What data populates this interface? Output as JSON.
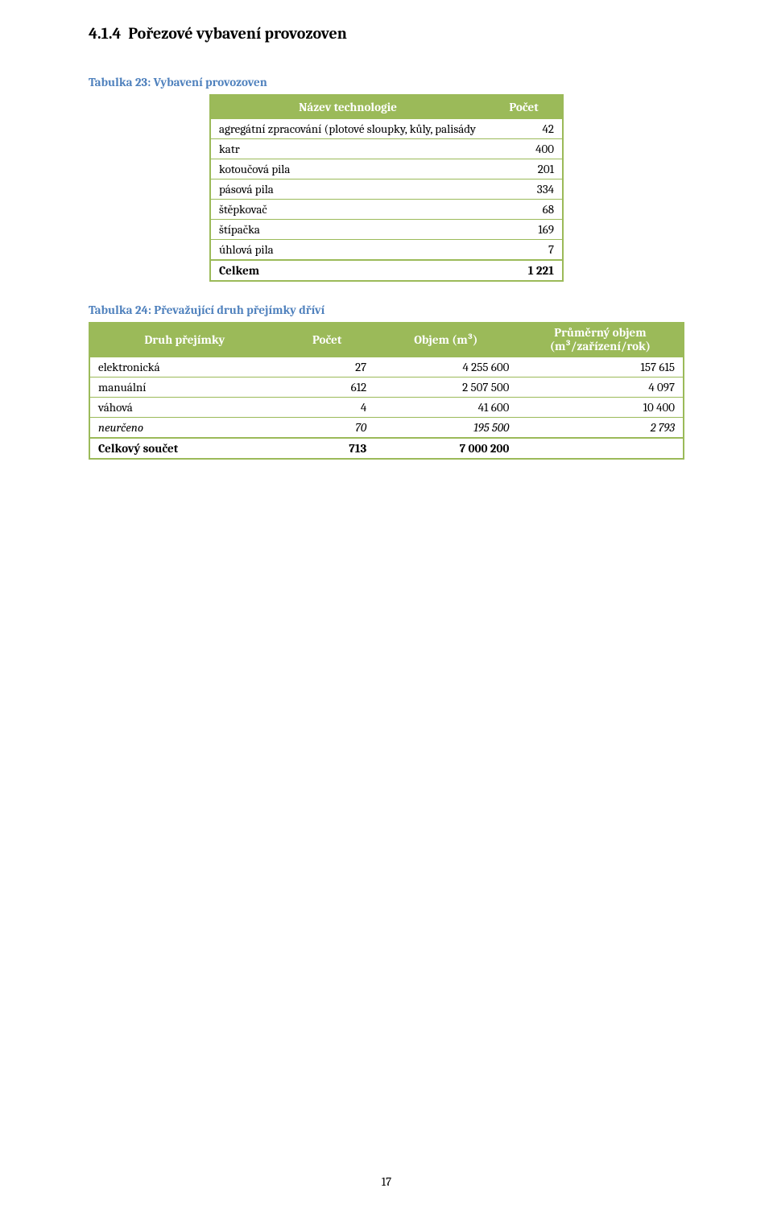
{
  "section": {
    "number": "4.1.4",
    "title": "Pořezové vybavení provozoven"
  },
  "table23": {
    "caption": "Tabulka 23: Vybavení provozoven",
    "columns": [
      "Název technologie",
      "Počet"
    ],
    "rows": [
      {
        "label": "agregátní zpracování (plotové sloupky, kůly, palisády",
        "value": "42"
      },
      {
        "label": "katr",
        "value": "400"
      },
      {
        "label": "kotoučová pila",
        "value": "201"
      },
      {
        "label": "pásová pila",
        "value": "334"
      },
      {
        "label": "štěpkovač",
        "value": "68"
      },
      {
        "label": "štípačka",
        "value": "169"
      },
      {
        "label": "úhlová pila",
        "value": "7"
      }
    ],
    "total": {
      "label": "Celkem",
      "value": "1 221"
    },
    "col_widths": [
      "78%",
      "22%"
    ],
    "header_bg": "#9bba59",
    "header_color": "#ffffff",
    "border_color": "#9bba59"
  },
  "table24": {
    "caption": "Tabulka 24: Převažující druh přejímky dříví",
    "columns": [
      "Druh přejímky",
      "Počet",
      "Objem (m³)",
      "Průměrný objem (m³/zařízení/rok)"
    ],
    "col4_line1": "Průměrný objem",
    "col4_line2": "(m³/zařízení/rok)",
    "rows": [
      {
        "label": "elektronická",
        "c2": "27",
        "c3": "4 255 600",
        "c4": "157 615",
        "italic": false
      },
      {
        "label": "manuální",
        "c2": "612",
        "c3": "2 507 500",
        "c4": "4 097",
        "italic": false
      },
      {
        "label": "váhová",
        "c2": "4",
        "c3": "41 600",
        "c4": "10 400",
        "italic": false
      },
      {
        "label": "neurčeno",
        "c2": "70",
        "c3": "195 500",
        "c4": "2 793",
        "italic": true
      }
    ],
    "total": {
      "label": "Celkový součet",
      "c2": "713",
      "c3": "7 000 200",
      "c4": ""
    },
    "col_widths": [
      "32%",
      "16%",
      "24%",
      "28%"
    ],
    "header_bg": "#9bba59",
    "header_color": "#ffffff",
    "border_color": "#9bba59"
  },
  "caption_color": "#4f81bd",
  "page_number": "17"
}
